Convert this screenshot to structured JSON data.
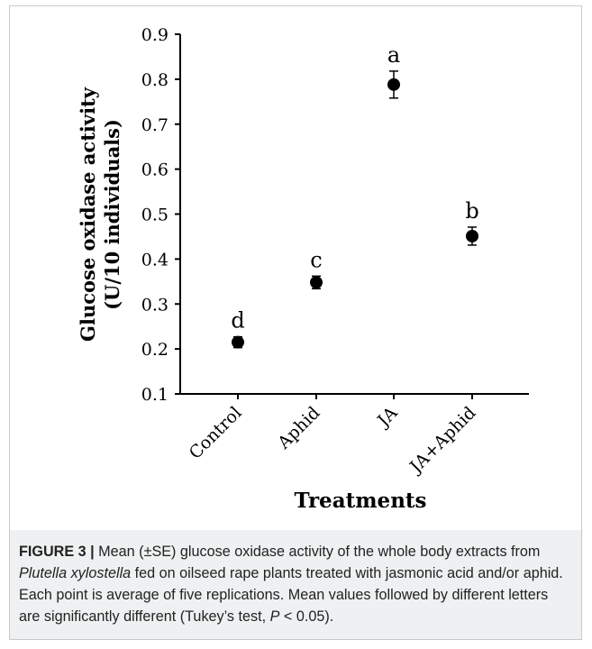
{
  "chart_data": {
    "type": "scatter",
    "categories": [
      "Control",
      "Aphid",
      "JA",
      "JA+Aphid"
    ],
    "values": [
      0.215,
      0.348,
      0.788,
      0.451
    ],
    "errors": [
      0.012,
      0.014,
      0.03,
      0.02
    ],
    "letters": [
      "d",
      "c",
      "a",
      "b"
    ],
    "ylabel_line1": "Glucose oxidase activity",
    "ylabel_line2": "(U/10 individuals)",
    "xlabel": "Treatments",
    "ylim": [
      0.1,
      0.9
    ],
    "yticks": [
      "0.1",
      "0.2",
      "0.3",
      "0.4",
      "0.5",
      "0.6",
      "0.7",
      "0.8",
      "0.9"
    ],
    "grid": false
  },
  "caption": {
    "label": "FIGURE 3 |",
    "t1": " Mean (±SE) glucose oxidase activity of the whole body extracts from ",
    "species": "Plutella xylostella",
    "t2": " fed on oilseed rape plants treated with jasmonic acid and/or aphid. Each point is average of five replications. Mean values followed by different letters are significantly different (Tukey’s test, ",
    "p": "P",
    "t3": " < 0.05)."
  }
}
